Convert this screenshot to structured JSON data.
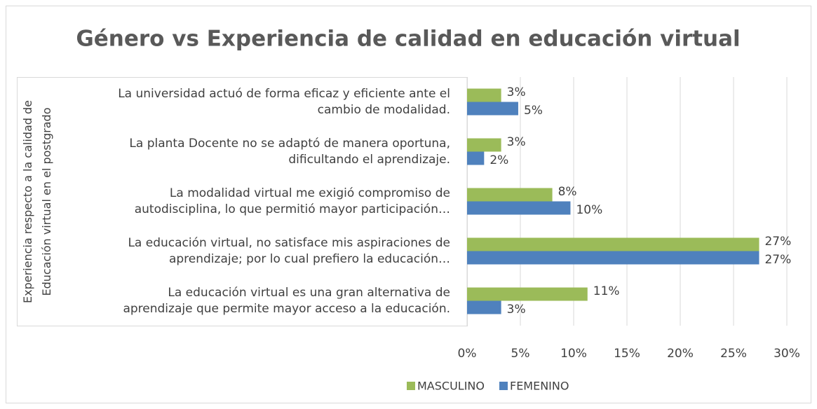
{
  "chart_data": {
    "type": "bar",
    "orientation": "horizontal",
    "title": "Género vs Experiencia de calidad en educación virtual",
    "y_label": "Experiencia respecto a la calidad de\nEducación virtual en el postgrado",
    "categories": [
      "La universidad actuó de forma eficaz y eficiente ante el\ncambio de modalidad.",
      "La planta Docente no se adaptó de manera oportuna,\ndificultando el aprendizaje.",
      "La modalidad virtual me exigió compromiso de\nautodisciplina, lo que permitió mayor participación…",
      "La educación virtual, no satisface mis aspiraciones de\naprendizaje; por lo cual prefiero la educación…",
      "La educación virtual es una gran alternativa de\naprendizaje que permite mayor acceso a la educación."
    ],
    "series": [
      {
        "name": "MASCULINO",
        "color": "#9bbb59",
        "values": [
          3.2,
          3.2,
          8,
          27.4,
          11.3
        ],
        "value_labels": [
          "3%",
          "3%",
          "8%",
          "27%",
          "11%"
        ]
      },
      {
        "name": "FEMENINO",
        "color": "#4f81bd",
        "values": [
          4.8,
          1.6,
          9.7,
          27.4,
          3.2
        ],
        "value_labels": [
          "5%",
          "2%",
          "10%",
          "27%",
          "3%"
        ]
      }
    ],
    "xlim": [
      0,
      30
    ],
    "xticks": [
      {
        "value": 0,
        "label": "0%"
      },
      {
        "value": 5,
        "label": "5%"
      },
      {
        "value": 10,
        "label": "10%"
      },
      {
        "value": 15,
        "label": "15%"
      },
      {
        "value": 20,
        "label": "20%"
      },
      {
        "value": 25,
        "label": "25%"
      },
      {
        "value": 30,
        "label": "30%"
      }
    ],
    "grid": true,
    "legend": "bottom"
  }
}
